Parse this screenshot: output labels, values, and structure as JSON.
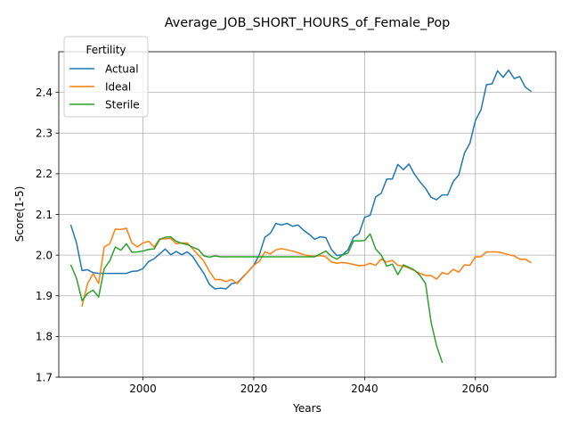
{
  "chart_data": {
    "type": "line",
    "title": "Average_JOB_SHORT_HOURS_of_Female_Pop",
    "xlabel": "Years",
    "ylabel": "Score(1-5)",
    "xlim": [
      2085,
      2075
    ],
    "ylim": [
      1.7,
      2.5
    ],
    "x_ticks": [
      2000,
      2020,
      2040,
      2060
    ],
    "y_ticks": [
      1.7,
      1.8,
      1.9,
      2.0,
      2.1,
      2.2,
      2.3,
      2.4
    ],
    "x_tick_labels": [
      "2000",
      "2020",
      "2040",
      "2060"
    ],
    "y_tick_labels": [
      "1.7",
      "1.8",
      "1.9",
      "2.0",
      "2.1",
      "2.2",
      "2.3",
      "2.4"
    ],
    "grid": true,
    "legend": {
      "title": "Fertility",
      "position": "top-left"
    },
    "series": [
      {
        "name": "Actual",
        "color": "#1f77b4",
        "x": [
          1987,
          1988,
          1989,
          1990,
          1991,
          1992,
          1993,
          1994,
          1995,
          1996,
          1997,
          1998,
          1999,
          2000,
          2001,
          2002,
          2003,
          2004,
          2005,
          2006,
          2007,
          2008,
          2009,
          2010,
          2011,
          2012,
          2013,
          2014,
          2015,
          2016,
          2017,
          2018,
          2019,
          2020,
          2021,
          2022,
          2023,
          2024,
          2025,
          2026,
          2027,
          2028,
          2029,
          2030,
          2031,
          2032,
          2033,
          2034,
          2035,
          2036,
          2037,
          2038,
          2039,
          2040,
          2041,
          2042,
          2043,
          2044,
          2045,
          2046,
          2047,
          2048,
          2049,
          2050,
          2051,
          2052,
          2053,
          2054,
          2055,
          2056,
          2057,
          2058,
          2059,
          2060,
          2061,
          2062,
          2063,
          2064,
          2065,
          2066,
          2067,
          2068,
          2069,
          2070
        ],
        "values": [
          2.073,
          2.03,
          1.962,
          1.964,
          1.957,
          1.955,
          1.955,
          1.955,
          1.955,
          1.955,
          1.955,
          1.96,
          1.961,
          1.967,
          1.984,
          1.991,
          2.003,
          2.015,
          2.001,
          2.009,
          2.001,
          2.008,
          1.996,
          1.975,
          1.955,
          1.928,
          1.917,
          1.919,
          1.917,
          1.93,
          1.932,
          1.946,
          1.96,
          1.975,
          2.001,
          2.044,
          2.054,
          2.078,
          2.074,
          2.078,
          2.071,
          2.074,
          2.061,
          2.051,
          2.039,
          2.045,
          2.043,
          2.014,
          1.999,
          2.001,
          2.013,
          2.044,
          2.053,
          2.093,
          2.098,
          2.143,
          2.152,
          2.187,
          2.187,
          2.223,
          2.21,
          2.224,
          2.199,
          2.18,
          2.164,
          2.142,
          2.136,
          2.148,
          2.148,
          2.181,
          2.197,
          2.25,
          2.275,
          2.331,
          2.357,
          2.419,
          2.421,
          2.453,
          2.437,
          2.455,
          2.434,
          2.439,
          2.413,
          2.403
        ]
      },
      {
        "name": "Ideal",
        "color": "#ff7f0e",
        "x": [
          1989,
          1990,
          1991,
          1992,
          1993,
          1994,
          1995,
          1996,
          1997,
          1998,
          1999,
          2000,
          2001,
          2002,
          2003,
          2004,
          2005,
          2006,
          2007,
          2008,
          2009,
          2010,
          2011,
          2012,
          2013,
          2014,
          2015,
          2016,
          2017,
          2018,
          2019,
          2020,
          2021,
          2022,
          2023,
          2024,
          2025,
          2026,
          2027,
          2028,
          2029,
          2030,
          2031,
          2032,
          2033,
          2034,
          2035,
          2036,
          2037,
          2038,
          2039,
          2040,
          2041,
          2042,
          2043,
          2044,
          2045,
          2046,
          2047,
          2048,
          2049,
          2050,
          2051,
          2052,
          2053,
          2054,
          2055,
          2056,
          2057,
          2058,
          2059,
          2060,
          2061,
          2062,
          2063,
          2064,
          2065,
          2066,
          2067,
          2068,
          2069,
          2070
        ],
        "values": [
          1.875,
          1.93,
          1.955,
          1.93,
          2.02,
          2.028,
          2.064,
          2.063,
          2.066,
          2.03,
          2.02,
          2.03,
          2.034,
          2.02,
          2.04,
          2.04,
          2.041,
          2.028,
          2.03,
          2.03,
          2.015,
          2.0,
          1.985,
          1.96,
          1.94,
          1.94,
          1.935,
          1.94,
          1.93,
          1.945,
          1.96,
          1.975,
          1.985,
          2.008,
          2.003,
          2.013,
          2.016,
          2.013,
          2.01,
          2.006,
          2.001,
          1.998,
          1.997,
          1.999,
          1.996,
          1.983,
          1.98,
          1.982,
          1.98,
          1.977,
          1.974,
          1.975,
          1.98,
          1.975,
          1.99,
          1.983,
          1.987,
          1.975,
          1.973,
          1.968,
          1.962,
          1.955,
          1.95,
          1.95,
          1.941,
          1.957,
          1.953,
          1.965,
          1.958,
          1.976,
          1.975,
          1.996,
          1.996,
          2.008,
          2.008,
          2.008,
          2.005,
          2.001,
          1.998,
          1.99,
          1.99,
          1.982
        ]
      },
      {
        "name": "Sterile",
        "color": "#2ca02c",
        "x": [
          1987,
          1988,
          1989,
          1990,
          1991,
          1992,
          1993,
          1994,
          1995,
          1996,
          1997,
          1998,
          1999,
          2000,
          2001,
          2002,
          2003,
          2004,
          2005,
          2006,
          2007,
          2008,
          2009,
          2010,
          2011,
          2012,
          2013,
          2014,
          2015,
          2016,
          2017,
          2018,
          2019,
          2020,
          2021,
          2022,
          2023,
          2024,
          2025,
          2026,
          2027,
          2028,
          2029,
          2030,
          2031,
          2032,
          2033,
          2034,
          2035,
          2036,
          2037,
          2038,
          2039,
          2040,
          2041,
          2042,
          2043,
          2044,
          2045,
          2046,
          2047,
          2048,
          2049,
          2050,
          2051,
          2052,
          2053,
          2054
        ],
        "values": [
          1.975,
          1.943,
          1.888,
          1.906,
          1.914,
          1.897,
          1.967,
          1.986,
          2.02,
          2.012,
          2.028,
          2.007,
          2.008,
          2.01,
          2.014,
          2.015,
          2.038,
          2.044,
          2.045,
          2.034,
          2.029,
          2.026,
          2.019,
          2.014,
          1.998,
          1.995,
          1.998,
          1.996,
          1.996,
          1.996,
          1.996,
          1.996,
          1.996,
          1.996,
          1.996,
          1.996,
          1.996,
          1.996,
          1.996,
          1.996,
          1.996,
          1.996,
          1.996,
          1.996,
          1.996,
          2.003,
          2.01,
          1.997,
          1.99,
          2.0,
          2.005,
          2.035,
          2.035,
          2.036,
          2.052,
          2.015,
          2.0,
          1.973,
          1.978,
          1.952,
          1.976,
          1.97,
          1.963,
          1.95,
          1.93,
          1.835,
          1.777,
          1.737
        ]
      }
    ]
  }
}
